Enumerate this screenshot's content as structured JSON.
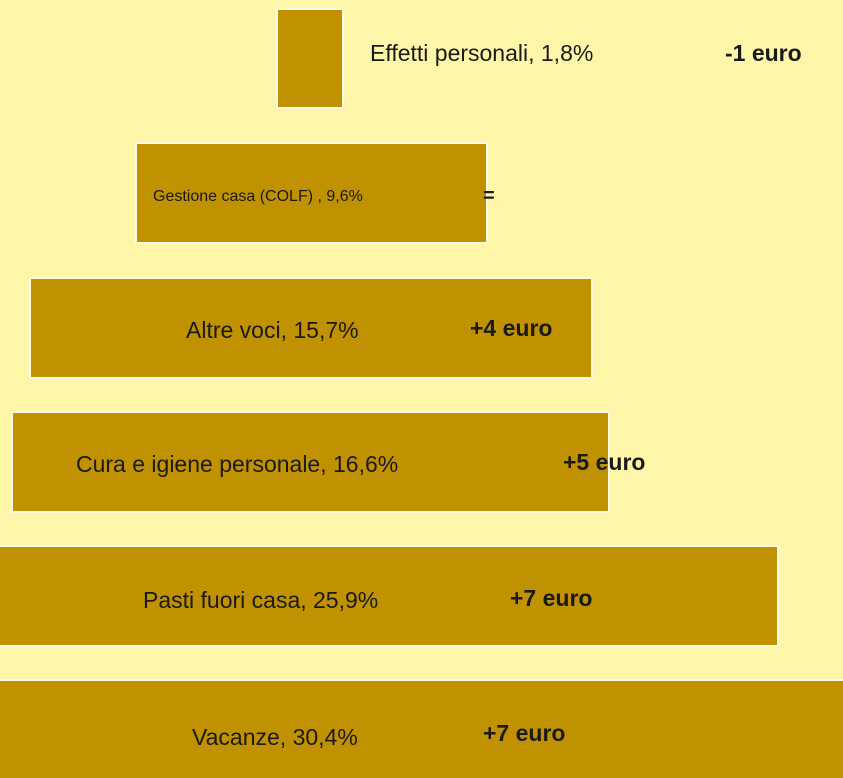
{
  "items": [
    {
      "label": "Effetti personali, 1,8%",
      "delta": "-1 euro"
    },
    {
      "label": "Gestione casa (COLF) , 9,6%",
      "delta": "="
    },
    {
      "label": "Altre voci, 15,7%",
      "delta": "+4 euro"
    },
    {
      "label": "Cura e igiene personale, 16,6%",
      "delta": "+5 euro"
    },
    {
      "label": "Pasti fuori casa, 25,9%",
      "delta": "+7 euro"
    },
    {
      "label": "Vacanze, 30,4%",
      "delta": "+7 euro"
    }
  ]
}
